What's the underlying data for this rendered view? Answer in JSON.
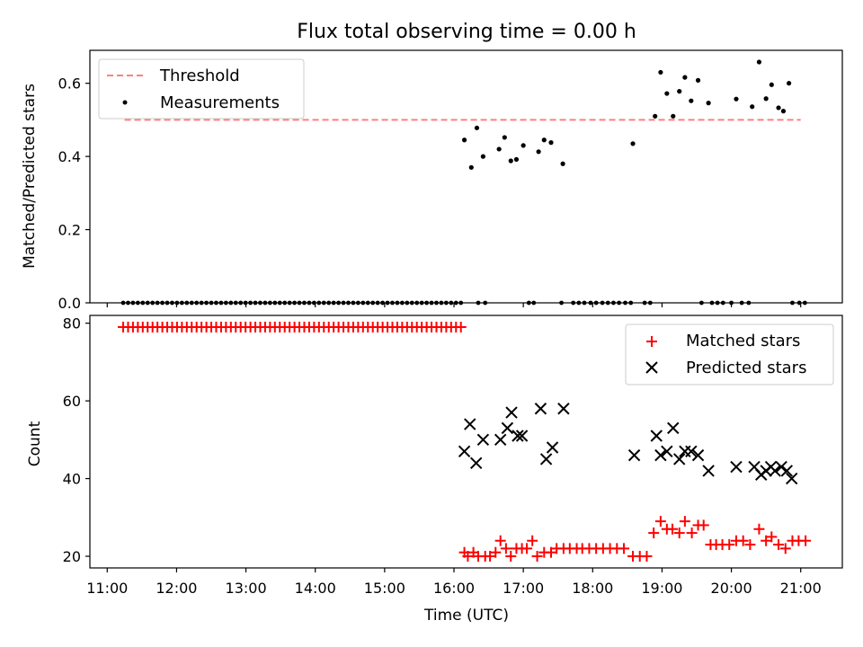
{
  "chart_data": [
    {
      "type": "scatter",
      "title": "Flux total observing time = 0.00 h",
      "xlabel": "",
      "ylabel": "Matched/Predicted stars",
      "xlim": [
        10.75,
        21.6
      ],
      "ylim": [
        0,
        0.69
      ],
      "yticks": [
        0.0,
        0.2,
        0.4,
        0.6
      ],
      "ytick_labels": [
        "0.0",
        "0.2",
        "0.4",
        "0.6"
      ],
      "legend": {
        "placement": "upper-left",
        "entries": [
          "Threshold",
          "Measurements"
        ]
      },
      "threshold": {
        "name": "Threshold",
        "value": 0.5,
        "x_range": [
          11.25,
          21.0
        ],
        "color": "#ff7f7f",
        "style": "dashed"
      },
      "measurements": {
        "name": "Measurements",
        "color": "#000000",
        "x": [
          16.15,
          16.25,
          16.33,
          16.42,
          16.65,
          16.73,
          16.82,
          16.9,
          17.0,
          17.22,
          17.3,
          17.4,
          17.57,
          18.58,
          18.9,
          18.98,
          19.07,
          19.16,
          19.25,
          19.33,
          19.42,
          19.52,
          19.67,
          20.07,
          20.3,
          20.4,
          20.5,
          20.58,
          20.68,
          20.75,
          20.83
        ],
        "y": [
          0.445,
          0.37,
          0.478,
          0.4,
          0.42,
          0.452,
          0.388,
          0.392,
          0.43,
          0.413,
          0.445,
          0.438,
          0.38,
          0.435,
          0.51,
          0.63,
          0.572,
          0.51,
          0.578,
          0.616,
          0.552,
          0.608,
          0.546,
          0.557,
          0.536,
          0.658,
          0.558,
          0.596,
          0.533,
          0.524,
          0.6
        ],
        "zero_x_start": 11.23,
        "zero_x_end": 16.1,
        "zero_count": 70,
        "zero_x_extra": [
          16.35,
          16.45,
          17.08,
          17.15,
          17.55,
          17.72,
          17.8,
          17.88,
          17.97,
          18.05,
          18.14,
          18.22,
          18.3,
          18.38,
          18.47,
          18.55,
          18.75,
          18.83,
          19.57,
          19.72,
          19.8,
          19.88,
          20.0,
          20.15,
          20.25,
          20.88,
          20.98,
          21.06
        ]
      }
    },
    {
      "type": "scatter",
      "xlabel": "Time (UTC)",
      "ylabel": "Count",
      "xlim": [
        10.75,
        21.6
      ],
      "ylim": [
        17,
        82
      ],
      "yticks": [
        20,
        40,
        60,
        80
      ],
      "ytick_labels": [
        "20",
        "40",
        "60",
        "80"
      ],
      "xticks": [
        11,
        12,
        13,
        14,
        15,
        16,
        17,
        18,
        19,
        20,
        21
      ],
      "xtick_labels": [
        "11:00",
        "12:00",
        "13:00",
        "14:00",
        "15:00",
        "16:00",
        "17:00",
        "18:00",
        "19:00",
        "20:00",
        "21:00"
      ],
      "legend": {
        "placement": "upper-right",
        "entries": [
          "Matched stars",
          "Predicted stars"
        ]
      },
      "matched": {
        "name": "Matched stars",
        "color": "#ff0000",
        "const_value": 79,
        "const_x_start": 11.23,
        "const_x_end": 16.1,
        "const_count": 70,
        "x": [
          16.15,
          16.2,
          16.28,
          16.35,
          16.45,
          16.52,
          16.6,
          16.67,
          16.75,
          16.82,
          16.9,
          16.98,
          17.05,
          17.13,
          17.2,
          17.3,
          17.4,
          17.48,
          17.58,
          17.67,
          17.77,
          17.85,
          17.95,
          18.05,
          18.15,
          18.25,
          18.35,
          18.45,
          18.58,
          18.68,
          18.78,
          18.88,
          18.98,
          19.07,
          19.15,
          19.25,
          19.33,
          19.43,
          19.52,
          19.6,
          19.7,
          19.78,
          19.87,
          19.97,
          20.07,
          20.17,
          20.27,
          20.4,
          20.5,
          20.58,
          20.68,
          20.78,
          20.88,
          20.97,
          21.07
        ],
        "y": [
          21,
          20,
          21,
          20,
          20,
          20,
          21,
          24,
          22,
          20,
          22,
          22,
          22,
          24,
          20,
          21,
          21,
          22,
          22,
          22,
          22,
          22,
          22,
          22,
          22,
          22,
          22,
          22,
          20,
          20,
          20,
          26,
          29,
          27,
          27,
          26,
          29,
          26,
          28,
          28,
          23,
          23,
          23,
          23,
          24,
          24,
          23,
          27,
          24,
          25,
          23,
          22,
          24,
          24,
          24
        ]
      },
      "predicted": {
        "name": "Predicted stars",
        "color": "#000000",
        "x": [
          16.15,
          16.23,
          16.32,
          16.42,
          16.67,
          16.77,
          16.83,
          16.92,
          16.98,
          17.25,
          17.33,
          17.42,
          17.58,
          18.6,
          18.92,
          18.98,
          19.07,
          19.16,
          19.25,
          19.33,
          19.42,
          19.52,
          19.67,
          20.07,
          20.33,
          20.43,
          20.5,
          20.57,
          20.63,
          20.72,
          20.8,
          20.87
        ],
        "y": [
          47,
          54,
          44,
          50,
          50,
          53,
          57,
          51,
          51,
          58,
          45,
          48,
          58,
          46,
          51,
          46,
          47,
          53,
          45,
          47,
          47,
          46,
          42,
          43,
          43,
          41,
          42,
          43,
          42,
          43,
          42,
          40
        ]
      }
    }
  ]
}
